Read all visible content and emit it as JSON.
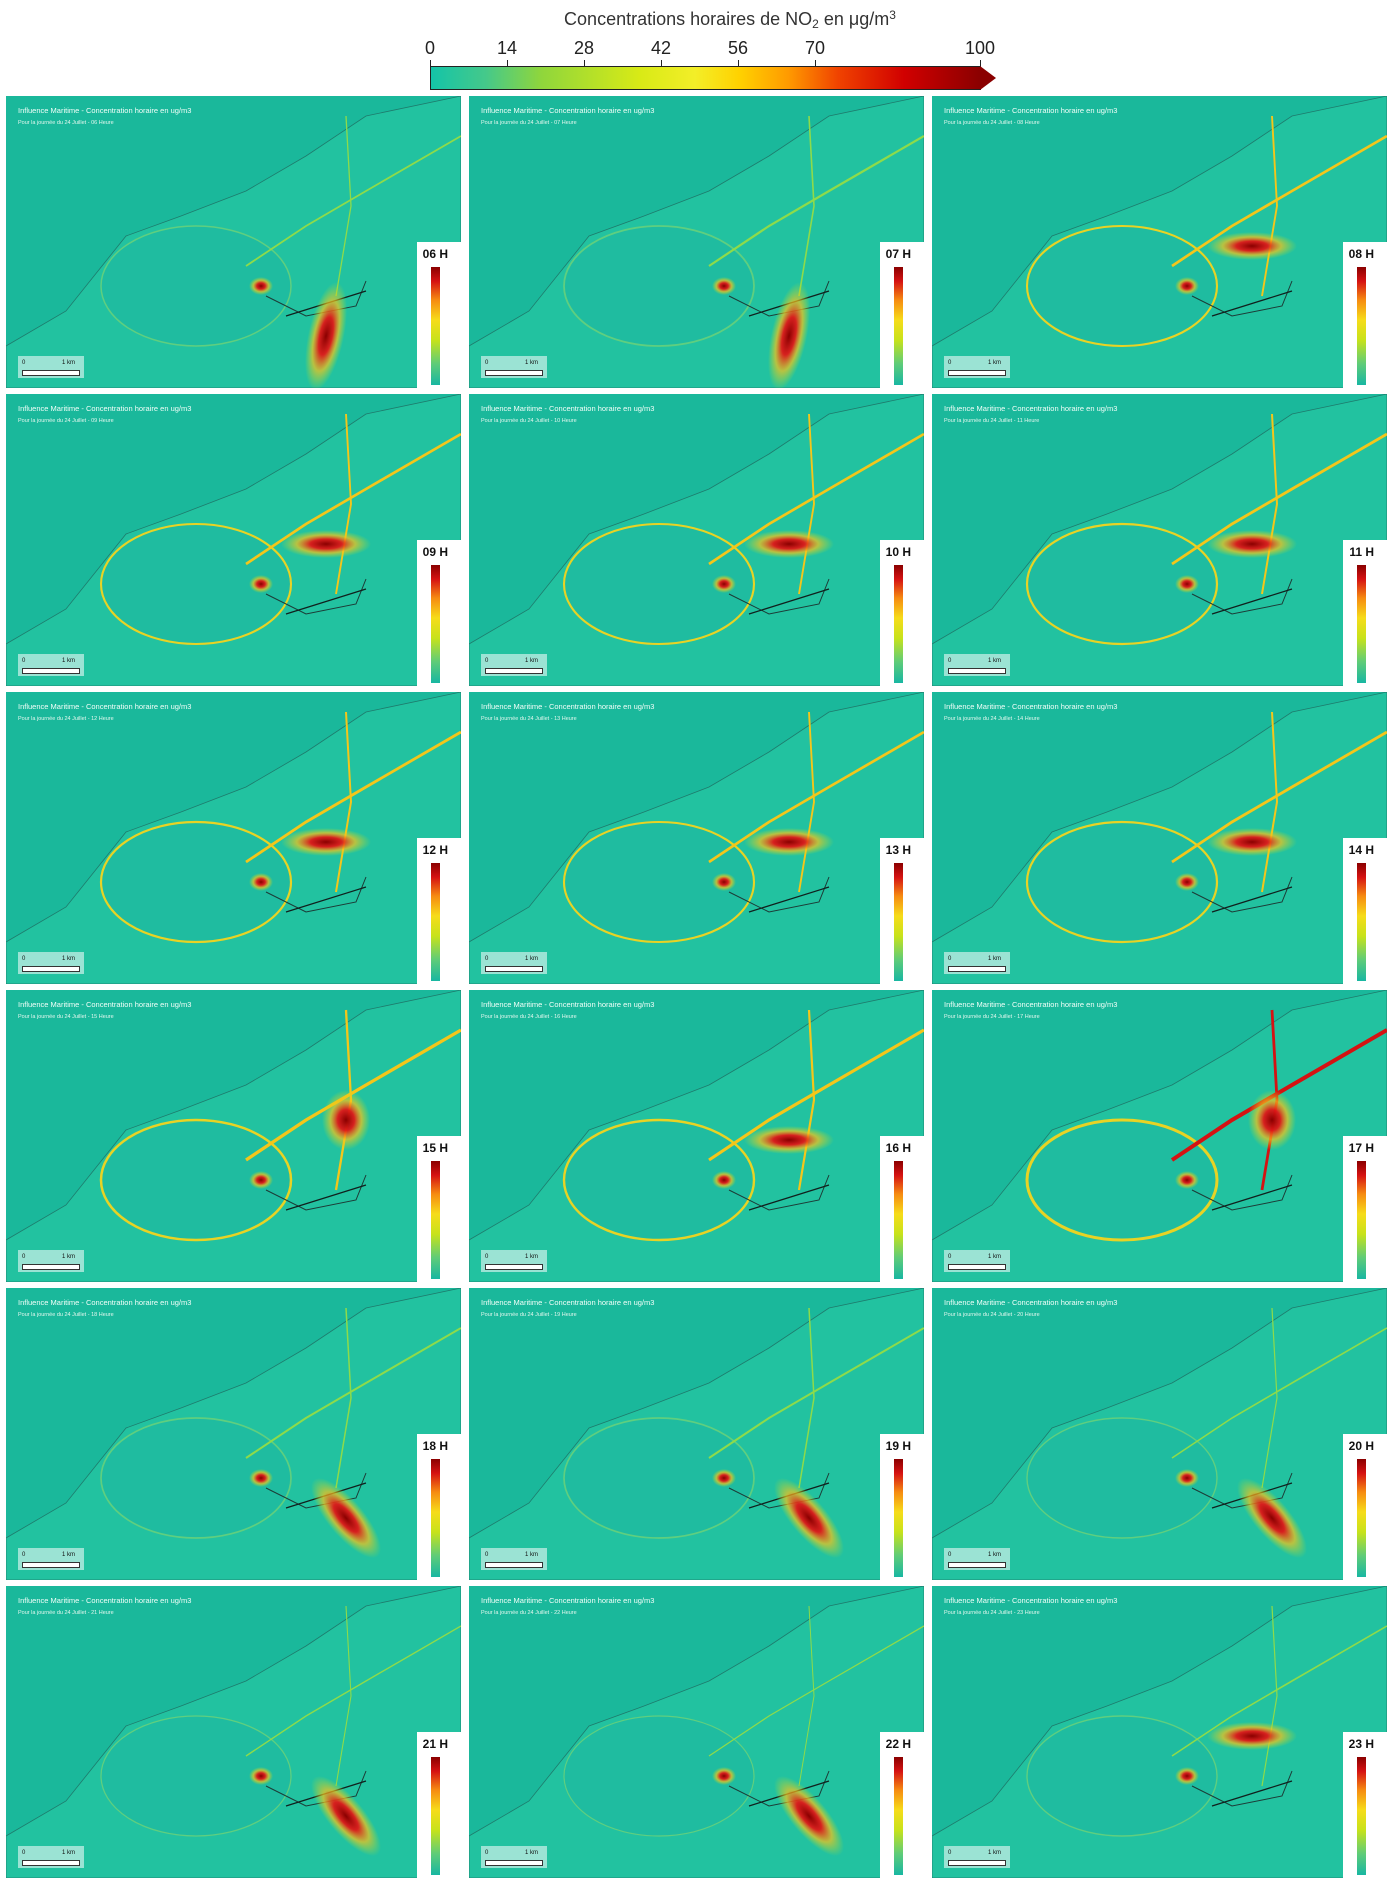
{
  "scale": {
    "title_prefix": "Concentrations horaires de NO",
    "title_sub": "2",
    "title_mid": " en μg/m",
    "title_sup": "3",
    "ticks": [
      "0",
      "14",
      "28",
      "42",
      "56",
      "70",
      "100"
    ],
    "tick_values": [
      0,
      14,
      28,
      42,
      56,
      70,
      100
    ],
    "colors": [
      "#14c4a8",
      "#8fd63c",
      "#f3ee28",
      "#ff9a00",
      "#d10000",
      "#8a0000"
    ]
  },
  "panel_title": "Influence Maritime - Concentration horaire en ug/m3",
  "scalebar": {
    "start": "0",
    "end": "1 km"
  },
  "panels": [
    {
      "hour": "06 H",
      "subtitle": "Pour la journée du 24 Juillet - 06 Heure",
      "intensity": 0.25,
      "plume": "south"
    },
    {
      "hour": "07 H",
      "subtitle": "Pour la journée du 24 Juillet - 07 Heure",
      "intensity": 0.4,
      "plume": "south"
    },
    {
      "hour": "08 H",
      "subtitle": "Pour la journée du 24 Juillet - 08 Heure",
      "intensity": 0.55,
      "plume": "east"
    },
    {
      "hour": "09 H",
      "subtitle": "Pour la journée du 24 Juillet - 09 Heure",
      "intensity": 0.55,
      "plume": "east"
    },
    {
      "hour": "10 H",
      "subtitle": "Pour la journée du 24 Juillet - 10 Heure",
      "intensity": 0.55,
      "plume": "east"
    },
    {
      "hour": "11 H",
      "subtitle": "Pour la journée du 24 Juillet - 11 Heure",
      "intensity": 0.6,
      "plume": "east"
    },
    {
      "hour": "12 H",
      "subtitle": "Pour la journée du 24 Juillet - 12 Heure",
      "intensity": 0.6,
      "plume": "east"
    },
    {
      "hour": "13 H",
      "subtitle": "Pour la journée du 24 Juillet - 13 Heure",
      "intensity": 0.55,
      "plume": "east"
    },
    {
      "hour": "14 H",
      "subtitle": "Pour la journée du 24 Juillet - 14 Heure",
      "intensity": 0.6,
      "plume": "east"
    },
    {
      "hour": "15 H",
      "subtitle": "Pour la journée du 24 Juillet - 15 Heure",
      "intensity": 0.75,
      "plume": "north"
    },
    {
      "hour": "16 H",
      "subtitle": "Pour la journée du 24 Juillet - 16 Heure",
      "intensity": 0.7,
      "plume": "east"
    },
    {
      "hour": "17 H",
      "subtitle": "Pour la journée du 24 Juillet - 17 Heure",
      "intensity": 1.0,
      "plume": "north"
    },
    {
      "hour": "18 H",
      "subtitle": "Pour la journée du 24 Juillet - 18 Heure",
      "intensity": 0.35,
      "plume": "southeast"
    },
    {
      "hour": "19 H",
      "subtitle": "Pour la journée du 24 Juillet - 19 Heure",
      "intensity": 0.35,
      "plume": "southeast"
    },
    {
      "hour": "20 H",
      "subtitle": "Pour la journée du 24 Juillet - 20 Heure",
      "intensity": 0.2,
      "plume": "southeast"
    },
    {
      "hour": "21 H",
      "subtitle": "Pour la journée du 24 Juillet - 21 Heure",
      "intensity": 0.15,
      "plume": "southeast"
    },
    {
      "hour": "22 H",
      "subtitle": "Pour la journée du 24 Juillet - 22 Heure",
      "intensity": 0.1,
      "plume": "southeast"
    },
    {
      "hour": "23 H",
      "subtitle": "Pour la journée du 24 Juillet - 23 Heure",
      "intensity": 0.2,
      "plume": "east"
    }
  ]
}
